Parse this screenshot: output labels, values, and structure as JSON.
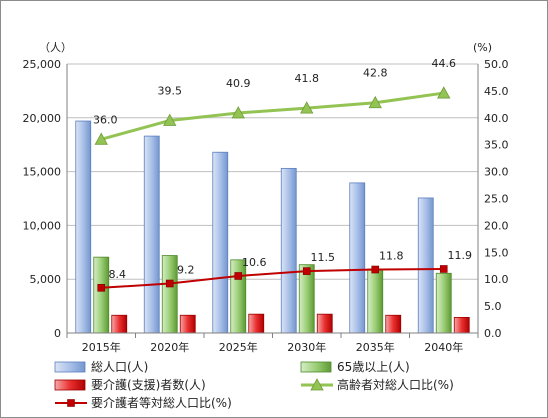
{
  "chart_data": {
    "type": "bar",
    "categories": [
      "2015年",
      "2020年",
      "2025年",
      "2030年",
      "2035年",
      "2040年"
    ],
    "left_axis": {
      "unit": "（人）",
      "ylim": [
        0,
        25000
      ],
      "ticks": [
        "0",
        "5,000",
        "10,000",
        "15,000",
        "20,000",
        "25,000"
      ]
    },
    "right_axis": {
      "unit": "(%)",
      "ylim": [
        0,
        50
      ],
      "ticks": [
        "0.0",
        "5.0",
        "10.0",
        "15.0",
        "20.0",
        "25.0",
        "30.0",
        "35.0",
        "40.0",
        "45.0",
        "50.0"
      ]
    },
    "grid": true,
    "legend_position": "bottom",
    "series": [
      {
        "name": "総人口(人)",
        "kind": "bar",
        "axis": "left",
        "color": "#8eaadb",
        "values": [
          19700,
          18300,
          16800,
          15300,
          13950,
          12550
        ]
      },
      {
        "name": "65歳以上(人)",
        "kind": "bar",
        "axis": "left",
        "color": "#70ad47",
        "values": [
          7050,
          7200,
          6800,
          6350,
          5950,
          5550
        ]
      },
      {
        "name": "要介護(支援)者数(人)",
        "kind": "bar",
        "axis": "left",
        "color": "#e02020",
        "values": [
          1650,
          1650,
          1750,
          1750,
          1650,
          1450
        ]
      },
      {
        "name": "高齢者対総人口比(%)",
        "kind": "line",
        "axis": "right",
        "color": "#92c353",
        "values": [
          36.0,
          39.5,
          40.9,
          41.8,
          42.8,
          44.6
        ],
        "labels": [
          "36.0",
          "39.5",
          "40.9",
          "41.8",
          "42.8",
          "44.6"
        ]
      },
      {
        "name": "要介護者等対総人口比(%)",
        "kind": "line",
        "axis": "right",
        "color": "#c00000",
        "values": [
          8.4,
          9.2,
          10.6,
          11.5,
          11.8,
          11.9
        ],
        "labels": [
          "8.4",
          "9.2",
          "10.6",
          "11.5",
          "11.8",
          "11.9"
        ]
      }
    ]
  }
}
